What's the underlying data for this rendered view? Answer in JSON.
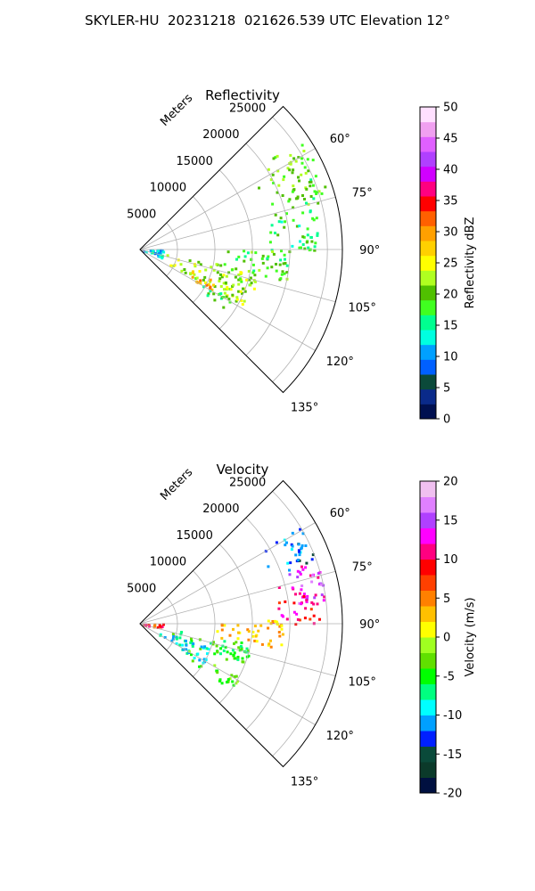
{
  "figure": {
    "title": "SKYLER-HU  20231218  021626.539 UTC Elevation 12°"
  },
  "chart_data": [
    {
      "type": "heatmap",
      "subtype": "polar-sector (PPI radar)",
      "title": "Reflectivity",
      "radial_axis_label": "Meters",
      "radial_ticks": [
        "5000",
        "10000",
        "15000",
        "20000",
        "25000"
      ],
      "radial_tick_values": [
        5000,
        10000,
        15000,
        20000,
        25000
      ],
      "rlim": [
        0,
        27000
      ],
      "angle_ticks": [
        "60°",
        "75°",
        "90°",
        "105°",
        "120°",
        "135°"
      ],
      "angle_tick_values": [
        60,
        75,
        90,
        105,
        120,
        135
      ],
      "azimuth_range": [
        45,
        135
      ],
      "grid": true,
      "colorbar": {
        "label": "Reflectivity dBZ",
        "range": [
          0,
          50
        ],
        "ticks": [
          "0",
          "5",
          "10",
          "15",
          "20",
          "25",
          "30",
          "35",
          "40",
          "45",
          "50"
        ],
        "tick_values": [
          0,
          5,
          10,
          15,
          20,
          25,
          30,
          35,
          40,
          45,
          50
        ],
        "colors": [
          "#001050",
          "#0a2a8a",
          "#0b4a3a",
          "#0060ff",
          "#00a0ff",
          "#00ffe0",
          "#00ff90",
          "#40ff20",
          "#50c000",
          "#b0ff20",
          "#ffff00",
          "#ffd000",
          "#ffa000",
          "#ff6000",
          "#ff0000",
          "#ff0080",
          "#d000ff",
          "#b040ff",
          "#e060ff",
          "#f0a0f0",
          "#ffe0ff"
        ]
      },
      "echo_regions": [
        {
          "az": [
            55,
            75
          ],
          "r": [
            17000,
            26000
          ],
          "value": 20
        },
        {
          "az": [
            75,
            90
          ],
          "r": [
            16000,
            24000
          ],
          "value": 17
        },
        {
          "az": [
            90,
            102
          ],
          "r": [
            10000,
            20000
          ],
          "value": 19
        },
        {
          "az": [
            100,
            118
          ],
          "r": [
            3000,
            16000
          ],
          "value": 22
        },
        {
          "az": [
            112,
            122
          ],
          "r": [
            7000,
            11000
          ],
          "value": 30
        },
        {
          "az": [
            118,
            125
          ],
          "r": [
            8000,
            14000
          ],
          "value": 18
        },
        {
          "az": [
            88,
            110
          ],
          "r": [
            0,
            3000
          ],
          "value": 12
        }
      ]
    },
    {
      "type": "heatmap",
      "subtype": "polar-sector (PPI radar)",
      "title": "Velocity",
      "radial_axis_label": "Meters",
      "radial_ticks": [
        "5000",
        "10000",
        "15000",
        "20000",
        "25000"
      ],
      "radial_tick_values": [
        5000,
        10000,
        15000,
        20000,
        25000
      ],
      "rlim": [
        0,
        27000
      ],
      "angle_ticks": [
        "60°",
        "75°",
        "90°",
        "105°",
        "120°",
        "135°"
      ],
      "angle_tick_values": [
        60,
        75,
        90,
        105,
        120,
        135
      ],
      "azimuth_range": [
        45,
        135
      ],
      "grid": true,
      "colorbar": {
        "label": "Velocity (m/s)",
        "range": [
          -20,
          20
        ],
        "ticks": [
          "-20",
          "-15",
          "-10",
          "-5",
          "0",
          "5",
          "10",
          "15",
          "20"
        ],
        "tick_values": [
          -20,
          -15,
          -10,
          -5,
          0,
          5,
          10,
          15,
          20
        ],
        "colors": [
          "#001040",
          "#0b3a2a",
          "#0a4a3a",
          "#0020ff",
          "#00a0ff",
          "#00ffff",
          "#00ff80",
          "#00ff00",
          "#60e000",
          "#a0ff20",
          "#ffff00",
          "#ffc000",
          "#ff8000",
          "#ff4000",
          "#ff0000",
          "#ff0080",
          "#ff00ff",
          "#b040ff",
          "#e080ff",
          "#f0c0f0"
        ]
      },
      "echo_regions": [
        {
          "az": [
            58,
            70
          ],
          "r": [
            18000,
            25000
          ],
          "value": -12
        },
        {
          "az": [
            70,
            83
          ],
          "r": [
            17000,
            25000
          ],
          "value": 14
        },
        {
          "az": [
            80,
            90
          ],
          "r": [
            17000,
            24000
          ],
          "value": 10
        },
        {
          "az": [
            88,
            100
          ],
          "r": [
            9000,
            19000
          ],
          "value": 3
        },
        {
          "az": [
            100,
            112
          ],
          "r": [
            4000,
            15000
          ],
          "value": -5
        },
        {
          "az": [
            108,
            122
          ],
          "r": [
            2000,
            10000
          ],
          "value": -9
        },
        {
          "az": [
            118,
            126
          ],
          "r": [
            7000,
            15000
          ],
          "value": -3
        },
        {
          "az": [
            88,
            100
          ],
          "r": [
            0,
            3000
          ],
          "value": 8
        }
      ]
    }
  ]
}
